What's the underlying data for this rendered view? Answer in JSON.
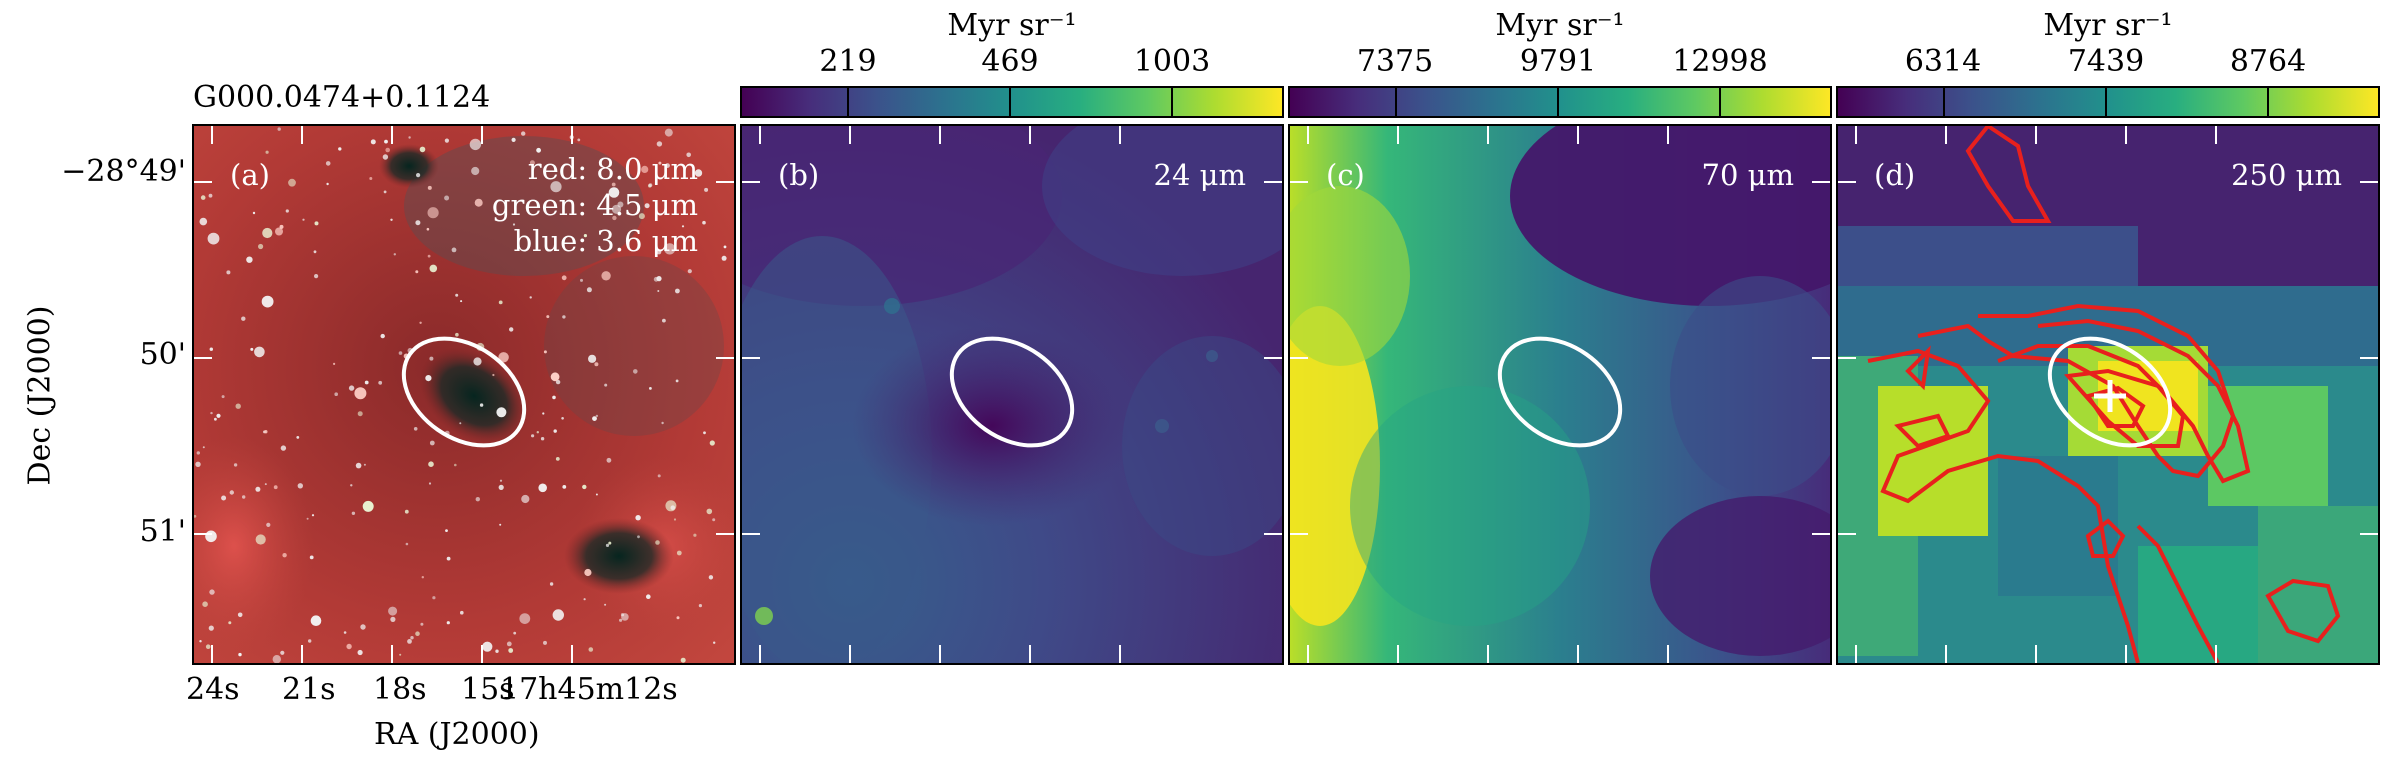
{
  "source_name": "G000.0474+0.1124",
  "colorbars": [
    {
      "unit": "Myr sr⁻¹",
      "ticks": [
        "219",
        "469",
        "1003"
      ]
    },
    {
      "unit": "Myr sr⁻¹",
      "ticks": [
        "7375",
        "9791",
        "12998"
      ]
    },
    {
      "unit": "Myr sr⁻¹",
      "ticks": [
        "6314",
        "7439",
        "8764"
      ]
    }
  ],
  "panels": [
    {
      "label": "(a)",
      "legend": [
        "red: 8.0 μm",
        "green: 4.5 μm",
        "blue: 3.6 μm"
      ]
    },
    {
      "label": "(b)",
      "wavelength": "24 μm"
    },
    {
      "label": "(c)",
      "wavelength": "70 μm"
    },
    {
      "label": "(d)",
      "wavelength": "250 μm"
    }
  ],
  "axes": {
    "y_title": "Dec (J2000)",
    "x_title": "RA (J2000)",
    "y_ticks": [
      "−28°49'",
      "50'",
      "51'"
    ],
    "x_ticks": [
      "24s",
      "21s",
      "18s",
      "15s",
      "17h45m12s"
    ]
  },
  "colors": {
    "viridis_dark": "#440154",
    "viridis_mid": "#21918c",
    "viridis_light": "#fde725",
    "contour": "#e8201d",
    "ellipse": "#ffffff"
  }
}
